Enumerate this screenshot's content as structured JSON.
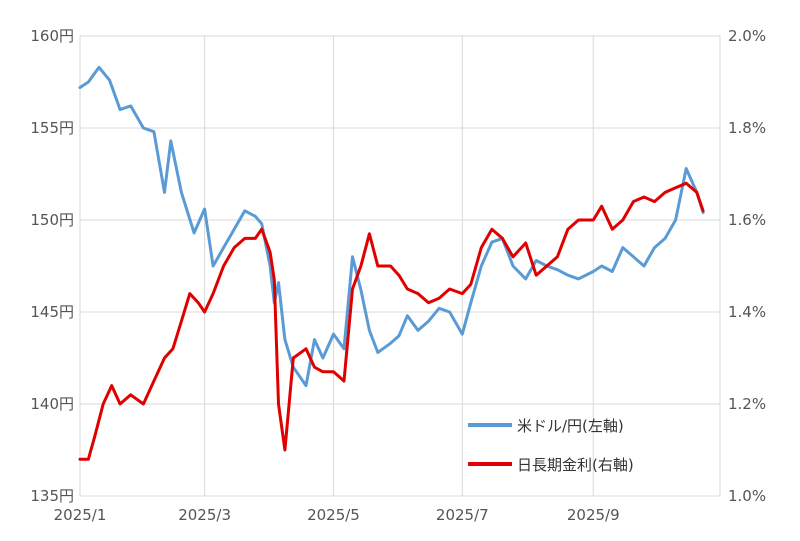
{
  "chart_data": {
    "type": "line",
    "title": "",
    "x_ticks": [
      "2025/1",
      "2025/3",
      "2025/5",
      "2025/7",
      "2025/9"
    ],
    "y_left": {
      "range": [
        135,
        160
      ],
      "ticks": [
        "135円",
        "140円",
        "145円",
        "150円",
        "155円",
        "160円"
      ]
    },
    "y_right": {
      "range": [
        1.0,
        2.0
      ],
      "ticks": [
        "1.0%",
        "1.2%",
        "1.4%",
        "1.6%",
        "1.8%",
        "2.0%"
      ]
    },
    "grid": true,
    "legend_position": "bottom-right",
    "series": [
      {
        "name": "米ドル/円(左軸)",
        "axis": "left",
        "color": "#5b9bd5",
        "x": [
          "2025/1/1",
          "2025/1/5",
          "2025/1/10",
          "2025/1/15",
          "2025/1/20",
          "2025/1/25",
          "2025/1/31",
          "2025/2/5",
          "2025/2/10",
          "2025/2/13",
          "2025/2/18",
          "2025/2/24",
          "2025/3/1",
          "2025/3/5",
          "2025/3/10",
          "2025/3/15",
          "2025/3/20",
          "2025/3/25",
          "2025/3/28",
          "2025/4/1",
          "2025/4/3",
          "2025/4/5",
          "2025/4/8",
          "2025/4/12",
          "2025/4/18",
          "2025/4/22",
          "2025/4/26",
          "2025/5/1",
          "2025/5/6",
          "2025/5/10",
          "2025/5/14",
          "2025/5/18",
          "2025/5/22",
          "2025/5/28",
          "2025/6/1",
          "2025/6/5",
          "2025/6/10",
          "2025/6/15",
          "2025/6/20",
          "2025/6/25",
          "2025/7/1",
          "2025/7/5",
          "2025/7/10",
          "2025/7/15",
          "2025/7/20",
          "2025/7/25",
          "2025/7/31",
          "2025/8/5",
          "2025/8/10",
          "2025/8/15",
          "2025/8/20",
          "2025/8/25",
          "2025/9/1",
          "2025/9/5",
          "2025/9/10",
          "2025/9/15",
          "2025/9/20",
          "2025/9/25",
          "2025/9/30",
          "2025/10/5",
          "2025/10/10",
          "2025/10/15",
          "2025/10/20",
          "2025/10/23"
        ],
        "values": [
          157.2,
          157.5,
          158.3,
          157.6,
          156.0,
          156.2,
          155.0,
          154.8,
          151.5,
          154.3,
          151.5,
          149.3,
          150.6,
          147.5,
          148.5,
          149.5,
          150.5,
          150.2,
          149.8,
          147.5,
          145.5,
          146.6,
          143.5,
          142.0,
          141.0,
          143.5,
          142.5,
          143.8,
          143.0,
          148.0,
          146.2,
          144.0,
          142.8,
          143.3,
          143.7,
          144.8,
          144.0,
          144.5,
          145.2,
          145.0,
          143.8,
          145.5,
          147.5,
          148.8,
          149.0,
          147.5,
          146.8,
          147.8,
          147.5,
          147.3,
          147.0,
          146.8,
          147.2,
          147.5,
          147.2,
          148.5,
          148.0,
          147.5,
          148.5,
          149.0,
          150.0,
          152.8,
          151.5,
          150.4
        ]
      },
      {
        "name": "日長期金利(右軸)",
        "axis": "right",
        "color": "#e00000",
        "x": [
          "2025/1/1",
          "2025/1/5",
          "2025/1/8",
          "2025/1/12",
          "2025/1/16",
          "2025/1/20",
          "2025/1/25",
          "2025/1/31",
          "2025/2/5",
          "2025/2/10",
          "2025/2/14",
          "2025/2/18",
          "2025/2/22",
          "2025/2/26",
          "2025/3/1",
          "2025/3/5",
          "2025/3/10",
          "2025/3/15",
          "2025/3/20",
          "2025/3/25",
          "2025/3/28",
          "2025/4/1",
          "2025/4/3",
          "2025/4/5",
          "2025/4/8",
          "2025/4/12",
          "2025/4/18",
          "2025/4/22",
          "2025/4/26",
          "2025/5/1",
          "2025/5/6",
          "2025/5/10",
          "2025/5/14",
          "2025/5/18",
          "2025/5/22",
          "2025/5/28",
          "2025/6/1",
          "2025/6/5",
          "2025/6/10",
          "2025/6/15",
          "2025/6/20",
          "2025/6/25",
          "2025/7/1",
          "2025/7/5",
          "2025/7/10",
          "2025/7/15",
          "2025/7/20",
          "2025/7/25",
          "2025/7/31",
          "2025/8/5",
          "2025/8/10",
          "2025/8/15",
          "2025/8/20",
          "2025/8/25",
          "2025/9/1",
          "2025/9/5",
          "2025/9/10",
          "2025/9/15",
          "2025/9/20",
          "2025/9/25",
          "2025/9/30",
          "2025/10/5",
          "2025/10/10",
          "2025/10/15",
          "2025/10/20",
          "2025/10/23"
        ],
        "values": [
          1.08,
          1.08,
          1.13,
          1.2,
          1.24,
          1.2,
          1.22,
          1.2,
          1.25,
          1.3,
          1.32,
          1.38,
          1.44,
          1.42,
          1.4,
          1.44,
          1.5,
          1.54,
          1.56,
          1.56,
          1.58,
          1.53,
          1.47,
          1.2,
          1.1,
          1.3,
          1.32,
          1.28,
          1.27,
          1.27,
          1.25,
          1.45,
          1.5,
          1.57,
          1.5,
          1.5,
          1.48,
          1.45,
          1.44,
          1.42,
          1.43,
          1.45,
          1.44,
          1.46,
          1.54,
          1.58,
          1.56,
          1.52,
          1.55,
          1.48,
          1.5,
          1.52,
          1.58,
          1.6,
          1.6,
          1.63,
          1.58,
          1.6,
          1.64,
          1.65,
          1.64,
          1.66,
          1.67,
          1.68,
          1.66,
          1.62
        ]
      }
    ]
  }
}
